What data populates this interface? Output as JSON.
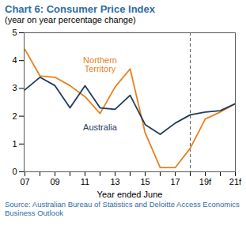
{
  "chart_data": {
    "type": "line",
    "title": "Chart 6: Consumer Price Index",
    "subtitle": "(year on year percentage change)",
    "x_label": "Year ended June",
    "caption": "Source: Australian Bureau of Statistics and Deloitte Access Economics Business Outlook",
    "categories": [
      "07",
      null,
      "09",
      null,
      "11",
      null,
      "13",
      null,
      "15",
      null,
      "17",
      null,
      "19f",
      null,
      "21f"
    ],
    "series": [
      {
        "name": "Northern Territory",
        "color": "#e8801e",
        "values": [
          4.4,
          3.45,
          3.4,
          3.1,
          2.7,
          2.1,
          3.05,
          3.7,
          1.4,
          0.15,
          0.15,
          0.85,
          1.9,
          2.15,
          2.45
        ]
      },
      {
        "name": "Australia",
        "color": "#1f3a5f",
        "values": [
          2.95,
          3.4,
          3.1,
          2.3,
          3.1,
          2.3,
          2.25,
          2.75,
          1.7,
          1.35,
          1.75,
          2.05,
          2.15,
          2.2,
          2.45
        ]
      }
    ],
    "ylim": [
      0,
      5
    ],
    "yticks": [
      0,
      1,
      2,
      3,
      4,
      5
    ],
    "forecast_line_position": 11,
    "grid": false
  }
}
